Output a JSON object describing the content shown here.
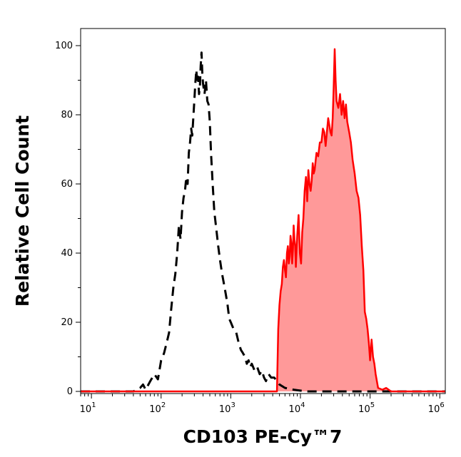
{
  "chart_data": {
    "type": "area",
    "xlabel": "CD103 PE-Cy™7",
    "ylabel": "Relative Cell Count",
    "x_scale": "log",
    "xlim": [
      7,
      1200000
    ],
    "ylim": [
      0,
      105
    ],
    "x_ticks": [
      {
        "value": 10,
        "base": "10",
        "exp": "1"
      },
      {
        "value": 100,
        "base": "10",
        "exp": "2"
      },
      {
        "value": 1000,
        "base": "10",
        "exp": "3"
      },
      {
        "value": 10000,
        "base": "10",
        "exp": "4"
      },
      {
        "value": 100000,
        "base": "10",
        "exp": "5"
      },
      {
        "value": 1000000,
        "base": "10",
        "exp": "6"
      }
    ],
    "y_ticks": [
      0,
      20,
      40,
      60,
      80,
      100
    ],
    "grid": false,
    "series": [
      {
        "style": "dashed",
        "color": "#000000",
        "fill": "none",
        "points": [
          [
            7,
            0
          ],
          [
            20,
            0
          ],
          [
            40,
            0
          ],
          [
            45,
            0.5
          ],
          [
            50,
            1
          ],
          [
            55,
            2
          ],
          [
            60,
            0.5
          ],
          [
            70,
            3
          ],
          [
            80,
            5
          ],
          [
            90,
            3.5
          ],
          [
            100,
            9
          ],
          [
            110,
            11
          ],
          [
            120,
            14
          ],
          [
            130,
            17
          ],
          [
            140,
            24
          ],
          [
            150,
            30
          ],
          [
            160,
            34
          ],
          [
            170,
            40
          ],
          [
            180,
            48
          ],
          [
            190,
            44
          ],
          [
            200,
            52
          ],
          [
            210,
            56
          ],
          [
            220,
            58
          ],
          [
            230,
            62
          ],
          [
            240,
            60
          ],
          [
            250,
            69
          ],
          [
            260,
            72
          ],
          [
            270,
            76
          ],
          [
            280,
            74
          ],
          [
            300,
            84
          ],
          [
            310,
            89
          ],
          [
            320,
            93
          ],
          [
            330,
            89
          ],
          [
            340,
            91
          ],
          [
            350,
            86
          ],
          [
            360,
            88
          ],
          [
            370,
            94
          ],
          [
            380,
            98
          ],
          [
            390,
            92
          ],
          [
            400,
            89
          ],
          [
            420,
            86
          ],
          [
            440,
            90
          ],
          [
            460,
            84
          ],
          [
            480,
            83
          ],
          [
            500,
            78
          ],
          [
            520,
            69
          ],
          [
            550,
            60
          ],
          [
            580,
            52
          ],
          [
            620,
            47
          ],
          [
            660,
            42
          ],
          [
            700,
            38
          ],
          [
            750,
            34
          ],
          [
            800,
            31
          ],
          [
            850,
            28
          ],
          [
            900,
            25
          ],
          [
            950,
            21
          ],
          [
            1000,
            20
          ],
          [
            1100,
            18
          ],
          [
            1200,
            17
          ],
          [
            1300,
            14
          ],
          [
            1400,
            12
          ],
          [
            1500,
            11
          ],
          [
            1600,
            10
          ],
          [
            1700,
            8
          ],
          [
            1800,
            9
          ],
          [
            1900,
            7
          ],
          [
            2000,
            8
          ],
          [
            2200,
            6
          ],
          [
            2400,
            7
          ],
          [
            2600,
            5
          ],
          [
            2800,
            6
          ],
          [
            3000,
            4
          ],
          [
            3200,
            3
          ],
          [
            3500,
            5
          ],
          [
            3800,
            4
          ],
          [
            4200,
            4
          ],
          [
            4600,
            3
          ],
          [
            5000,
            2
          ],
          [
            6000,
            1
          ],
          [
            8000,
            0.5
          ],
          [
            12000,
            0
          ],
          [
            30000,
            0
          ],
          [
            1200000,
            0
          ]
        ]
      },
      {
        "style": "solid",
        "color": "#ff0000",
        "fill": "#ff9999",
        "points": [
          [
            7,
            0
          ],
          [
            1000,
            0
          ],
          [
            4400,
            0
          ],
          [
            4600,
            0
          ],
          [
            4800,
            18
          ],
          [
            5000,
            25
          ],
          [
            5200,
            29
          ],
          [
            5400,
            31
          ],
          [
            5600,
            36
          ],
          [
            5800,
            38
          ],
          [
            6000,
            35
          ],
          [
            6200,
            33
          ],
          [
            6400,
            40
          ],
          [
            6600,
            42
          ],
          [
            6800,
            37
          ],
          [
            7000,
            39
          ],
          [
            7200,
            45
          ],
          [
            7400,
            43
          ],
          [
            7600,
            37
          ],
          [
            7800,
            41
          ],
          [
            8000,
            48
          ],
          [
            8200,
            44
          ],
          [
            8400,
            42
          ],
          [
            8600,
            36
          ],
          [
            8800,
            41
          ],
          [
            9000,
            45
          ],
          [
            9400,
            51
          ],
          [
            9800,
            40
          ],
          [
            10200,
            37
          ],
          [
            10600,
            46
          ],
          [
            11000,
            50
          ],
          [
            11500,
            58
          ],
          [
            12000,
            62
          ],
          [
            12500,
            55
          ],
          [
            13000,
            64
          ],
          [
            13500,
            60
          ],
          [
            14000,
            58
          ],
          [
            14500,
            61
          ],
          [
            15000,
            66
          ],
          [
            15500,
            63
          ],
          [
            16000,
            64
          ],
          [
            17000,
            69
          ],
          [
            18000,
            68
          ],
          [
            19000,
            72
          ],
          [
            20000,
            72
          ],
          [
            21000,
            76
          ],
          [
            22000,
            75
          ],
          [
            23000,
            71
          ],
          [
            24000,
            75
          ],
          [
            25000,
            79
          ],
          [
            26000,
            77
          ],
          [
            27000,
            75
          ],
          [
            28000,
            74
          ],
          [
            29000,
            79
          ],
          [
            30000,
            88
          ],
          [
            31000,
            99
          ],
          [
            32000,
            90
          ],
          [
            33000,
            84
          ],
          [
            35000,
            82
          ],
          [
            37000,
            86
          ],
          [
            39000,
            80
          ],
          [
            41000,
            84
          ],
          [
            43000,
            79
          ],
          [
            45000,
            83
          ],
          [
            47000,
            78
          ],
          [
            50000,
            75
          ],
          [
            53000,
            72
          ],
          [
            56000,
            67
          ],
          [
            60000,
            63
          ],
          [
            64000,
            58
          ],
          [
            68000,
            56
          ],
          [
            72000,
            51
          ],
          [
            76000,
            42
          ],
          [
            80000,
            35
          ],
          [
            84000,
            23
          ],
          [
            88000,
            21
          ],
          [
            92000,
            18
          ],
          [
            96000,
            14
          ],
          [
            100000,
            9
          ],
          [
            105000,
            15
          ],
          [
            110000,
            10
          ],
          [
            115000,
            8
          ],
          [
            120000,
            5
          ],
          [
            125000,
            3
          ],
          [
            130000,
            1
          ],
          [
            150000,
            0.5
          ],
          [
            170000,
            1
          ],
          [
            200000,
            0
          ],
          [
            1200000,
            0
          ]
        ]
      }
    ]
  }
}
